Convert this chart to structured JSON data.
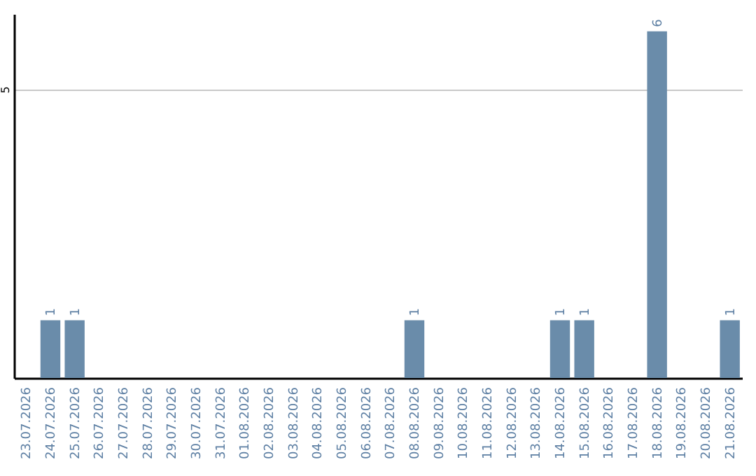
{
  "chart_data": {
    "type": "bar",
    "categories": [
      "23.07.2026",
      "24.07.2026",
      "25.07.2026",
      "26.07.2026",
      "27.07.2026",
      "28.07.2026",
      "29.07.2026",
      "30.07.2026",
      "31.07.2026",
      "01.08.2026",
      "02.08.2026",
      "03.08.2026",
      "04.08.2026",
      "05.08.2026",
      "06.08.2026",
      "07.08.2026",
      "08.08.2026",
      "09.08.2026",
      "10.08.2026",
      "11.08.2026",
      "12.08.2026",
      "13.08.2026",
      "14.08.2026",
      "15.08.2026",
      "16.08.2026",
      "17.08.2026",
      "18.08.2026",
      "19.08.2026",
      "20.08.2026",
      "21.08.2026"
    ],
    "values": [
      0,
      1,
      1,
      0,
      0,
      0,
      0,
      0,
      0,
      0,
      0,
      0,
      0,
      0,
      0,
      0,
      1,
      0,
      0,
      0,
      0,
      0,
      1,
      1,
      0,
      0,
      6,
      0,
      0,
      1
    ],
    "value_labels": [
      null,
      "1",
      "1",
      null,
      null,
      null,
      null,
      null,
      null,
      null,
      null,
      null,
      null,
      null,
      null,
      null,
      "1",
      null,
      null,
      null,
      null,
      null,
      "1",
      "1",
      null,
      null,
      "6",
      null,
      null,
      "1"
    ],
    "color": "#6a8caa",
    "ylim": [
      0,
      6.3
    ],
    "yticks": [
      5
    ],
    "grid": "y"
  }
}
